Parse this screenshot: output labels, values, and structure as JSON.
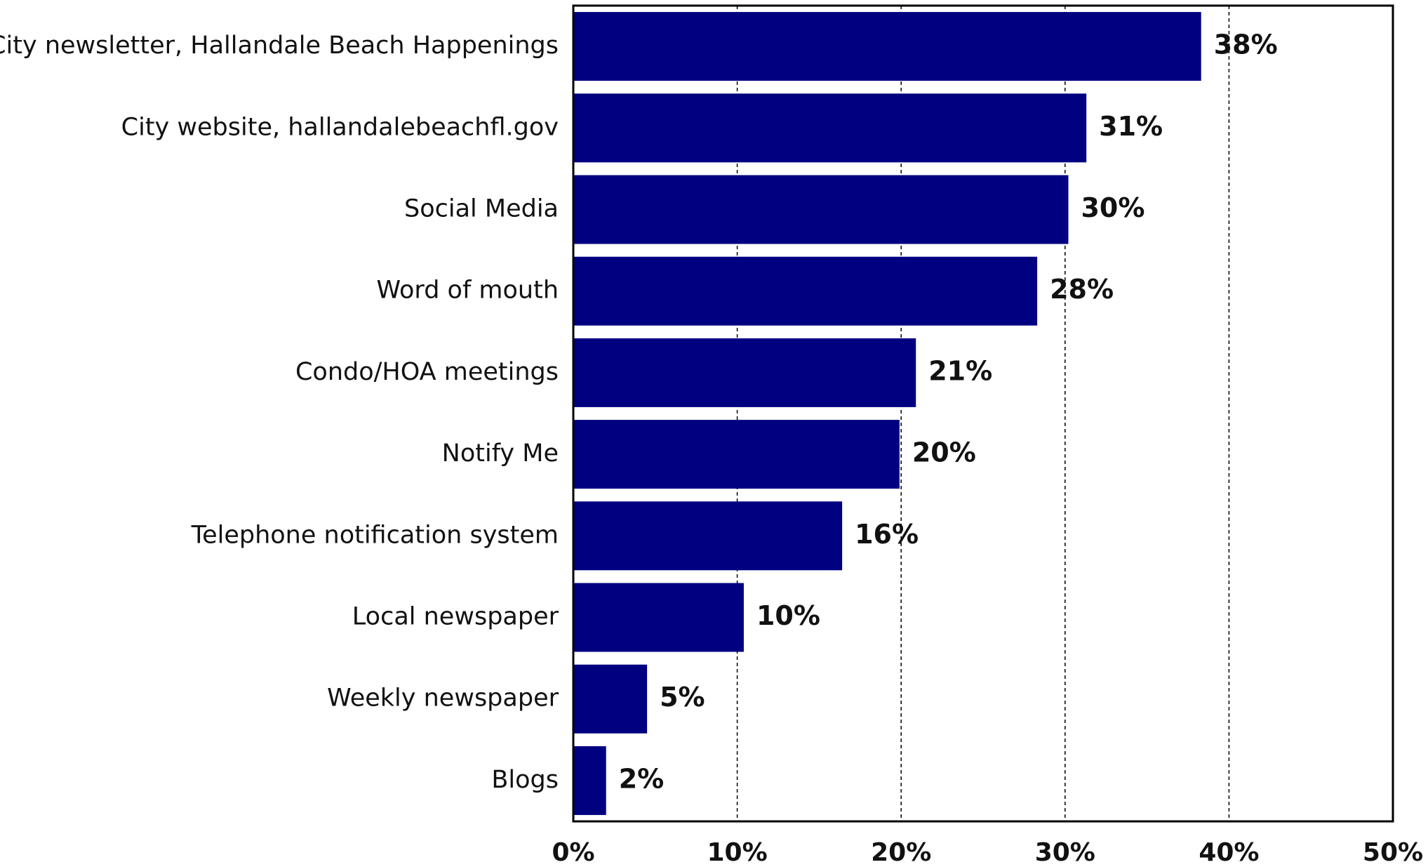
{
  "chart_data": {
    "type": "bar",
    "orientation": "horizontal",
    "categories": [
      "City newsletter, Hallandale Beach Happenings",
      "City website, hallandalebeachfl.gov",
      "Social Media",
      "Word of mouth",
      "Condo/HOA meetings",
      "Notify Me",
      "Telephone notification system",
      "Local newspaper",
      "Weekly newspaper",
      "Blogs"
    ],
    "values": [
      38.3,
      31.3,
      30.2,
      28.3,
      20.9,
      19.9,
      16.4,
      10.4,
      4.5,
      2.0
    ],
    "value_labels": [
      "38%",
      "31%",
      "30%",
      "28%",
      "21%",
      "20%",
      "16%",
      "10%",
      "5%",
      "2%"
    ],
    "xlim": [
      0,
      50
    ],
    "xticks": [
      0,
      10,
      20,
      30,
      40,
      50
    ],
    "xtick_labels": [
      "0%",
      "10%",
      "20%",
      "30%",
      "40%",
      "50%"
    ],
    "grid": "vertical dashed",
    "bar_color": "#000080",
    "title": "",
    "xlabel": "",
    "ylabel": ""
  }
}
